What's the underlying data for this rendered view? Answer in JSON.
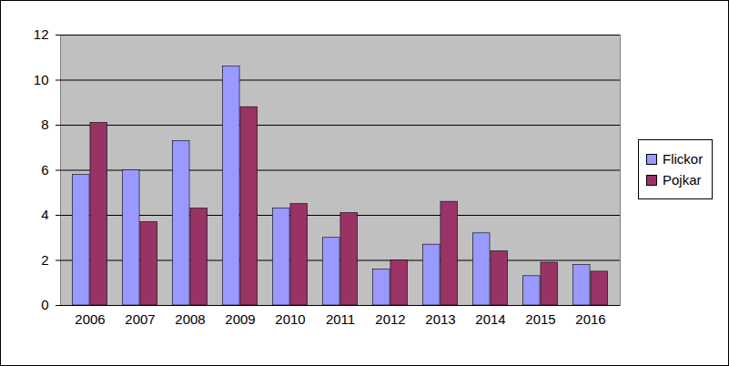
{
  "chart_data": {
    "type": "bar",
    "categories": [
      "2006",
      "2007",
      "2008",
      "2009",
      "2010",
      "2011",
      "2012",
      "2013",
      "2014",
      "2015",
      "2016"
    ],
    "series": [
      {
        "name": "Flickor",
        "color": "#9999ff",
        "values": [
          5.8,
          6.0,
          7.3,
          10.6,
          4.3,
          3.0,
          1.6,
          2.7,
          3.2,
          1.3,
          1.8
        ]
      },
      {
        "name": "Pojkar",
        "color": "#993366",
        "values": [
          8.1,
          3.7,
          4.3,
          8.8,
          4.5,
          4.1,
          2.0,
          4.6,
          2.4,
          1.9,
          1.5
        ]
      }
    ],
    "ylim": [
      0,
      12
    ],
    "yticks": [
      0,
      2,
      4,
      6,
      8,
      10,
      12
    ],
    "grid": true,
    "legend": "right"
  }
}
